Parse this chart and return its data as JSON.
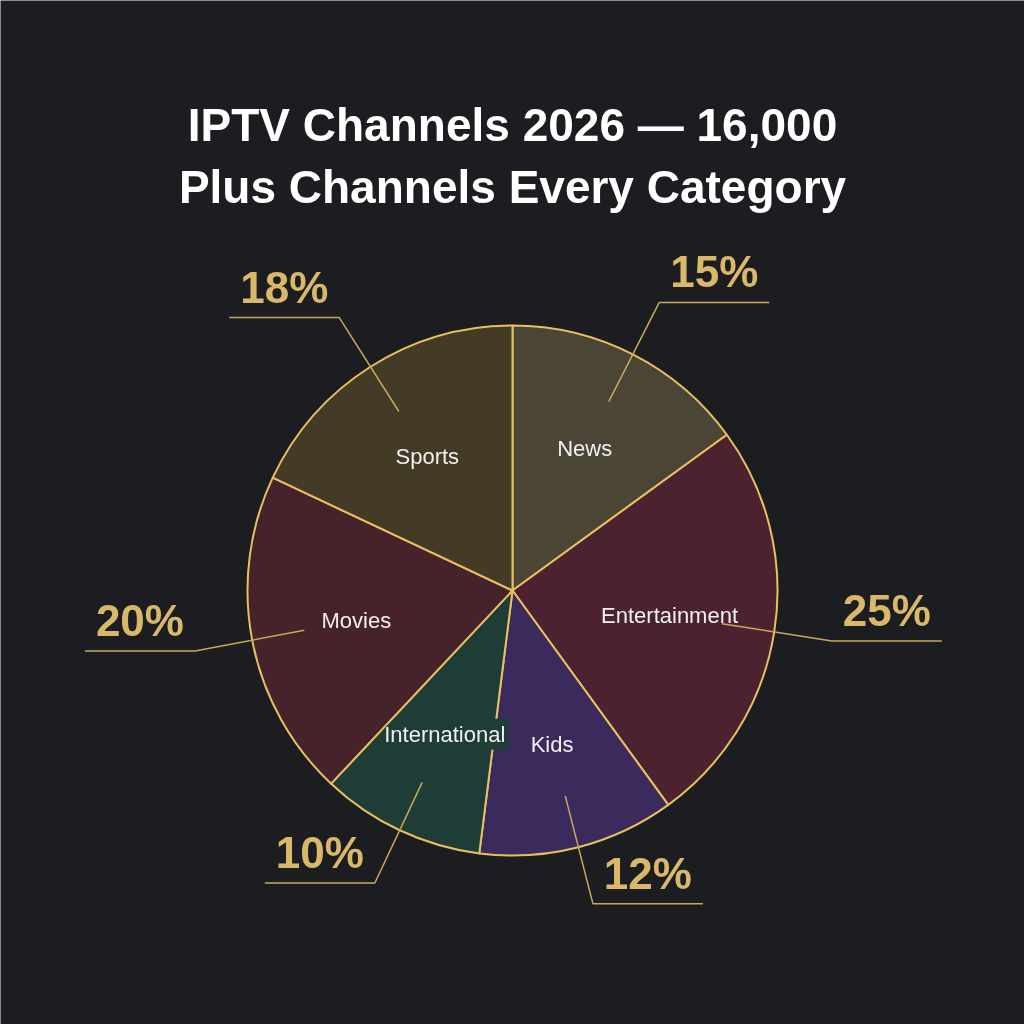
{
  "chart_data": {
    "type": "pie",
    "title": "IPTV Channels 2026 — 16,000 Plus Channels Every Category",
    "categories": [
      "News",
      "Entertainment",
      "Kids",
      "International",
      "Movies",
      "Sports"
    ],
    "values": [
      15,
      25,
      12,
      10,
      20,
      18
    ],
    "value_labels": [
      "15%",
      "25%",
      "12%",
      "10%",
      "20%",
      "18%"
    ],
    "colors": [
      "#4a4535",
      "#4d2230",
      "#3b2a5c",
      "#1f3d37",
      "#46222a",
      "#443b26"
    ]
  }
}
